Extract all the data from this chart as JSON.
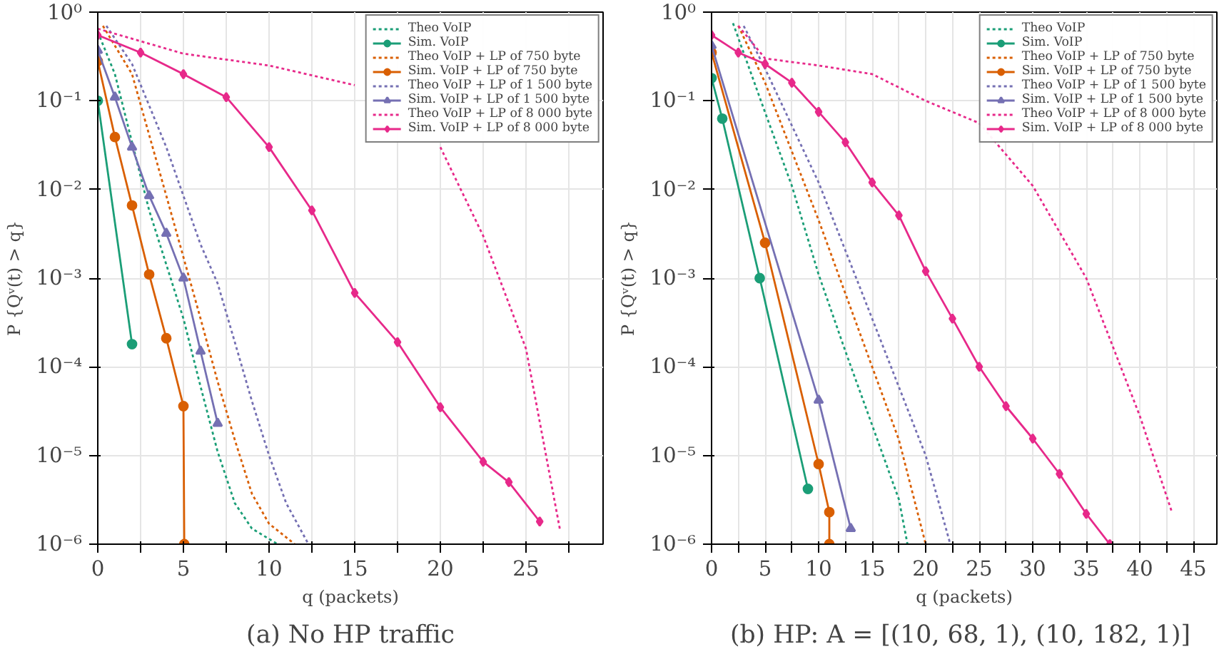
{
  "chart_data": [
    {
      "type": "line",
      "xlabel": "q (packets)",
      "ylabel": "P {Qᵛ(t) > q}",
      "annotations": [
        "(a) No HP traffic"
      ],
      "log": "y",
      "grid": true,
      "legend": "top right",
      "xlim": [
        0,
        29.5
      ],
      "xticks": [
        0,
        {
          "value": 2.5,
          "label": null
        },
        5,
        {
          "value": 7.5,
          "label": null
        },
        10,
        {
          "value": 12.5,
          "label": null
        },
        15,
        {
          "value": 17.5,
          "label": null
        },
        20,
        {
          "value": 22.5,
          "label": null
        },
        25,
        {
          "value": 27.5,
          "label": null
        }
      ],
      "ylim": [
        1e-06,
        1
      ],
      "yticks": [
        {
          "value": 1e-06,
          "label": "10⁻⁶"
        },
        {
          "value": 1e-05,
          "label": "10⁻⁵"
        },
        {
          "value": 0.0001,
          "label": "10⁻⁴"
        },
        {
          "value": 0.001,
          "label": "10⁻³"
        },
        {
          "value": 0.01,
          "label": "10⁻²"
        },
        {
          "value": 0.1,
          "label": "10⁻¹"
        },
        {
          "value": 1,
          "label": "10⁰"
        }
      ],
      "series": [
        {
          "name": "Theo VoIP",
          "color": "#1b9e77",
          "line_style": "dotted",
          "x": [
            0,
            1,
            3,
            5,
            6,
            7,
            8,
            9,
            10.5
          ],
          "values": [
            0.6,
            0.2,
            0.0058,
            0.00035,
            6e-05,
            1.1e-05,
            2.9e-06,
            1.5e-06,
            1e-06
          ]
        },
        {
          "name": "Sim. VoIP",
          "color": "#1b9e77",
          "line_style": "solid",
          "marker": "circle",
          "x": [
            0,
            2
          ],
          "values": [
            0.1,
            0.00018
          ]
        },
        {
          "name": "Theo VoIP + LP of 750 byte",
          "color": "#d95f02",
          "line_style": "dotted",
          "x": [
            0.3,
            2,
            4,
            6,
            7,
            8,
            9,
            10,
            11.5
          ],
          "values": [
            0.7,
            0.2,
            0.0085,
            0.00035,
            6.8e-05,
            1.5e-05,
            3.7e-06,
            1.7e-06,
            1e-06
          ]
        },
        {
          "name": "Sim. VoIP + LP of 750 byte",
          "color": "#d95f02",
          "line_style": "solid",
          "marker": "circle",
          "x": [
            0,
            1,
            2,
            3,
            4,
            5,
            5.05
          ],
          "values": [
            0.28,
            0.039,
            0.0066,
            0.0011,
            0.00021,
            3.6e-05,
            1e-06
          ]
        },
        {
          "name": "Theo VoIP + LP of 1 500 byte",
          "color": "#7570b3",
          "line_style": "dotted",
          "x": [
            0.5,
            2,
            4,
            6,
            7,
            8,
            9,
            10,
            11,
            12.3
          ],
          "values": [
            0.7,
            0.26,
            0.03,
            0.0024,
            0.00087,
            0.00019,
            4.1e-05,
            1e-05,
            2.9e-06,
            1e-06
          ]
        },
        {
          "name": "Sim. VoIP + LP of 1 500 byte",
          "color": "#7570b3",
          "line_style": "solid",
          "marker": "triangle",
          "x": [
            0,
            1,
            2,
            3,
            4,
            5,
            6,
            7
          ],
          "values": [
            0.37,
            0.11,
            0.03,
            0.0085,
            0.0032,
            0.001,
            0.00015,
            2.3e-05
          ]
        },
        {
          "name": "Theo VoIP + LP of 8 000 byte",
          "color": "#e7298a",
          "line_style": "dotted",
          "x": [
            0,
            5,
            10,
            15,
            17.5,
            20,
            22.5,
            25,
            27
          ],
          "values": [
            0.65,
            0.34,
            0.25,
            0.15,
            null,
            0.03,
            0.003,
            0.00016,
            1.4e-06
          ]
        },
        {
          "name": "Sim. VoIP + LP of 8 000 byte",
          "color": "#e7298a",
          "line_style": "solid",
          "marker": "diamond",
          "x": [
            0,
            2.5,
            5,
            7.5,
            10,
            12.5,
            15,
            17.5,
            20,
            22.5,
            24,
            25.8
          ],
          "values": [
            0.55,
            0.35,
            0.2,
            0.11,
            0.03,
            0.0058,
            0.00068,
            0.00019,
            3.5e-05,
            8.5e-06,
            5e-06,
            1.8e-06
          ]
        }
      ]
    },
    {
      "type": "line",
      "xlabel": "q (packets)",
      "ylabel": "P {Qᵛ(t) > q}",
      "annotations": [
        "(b) HP:  A = [(10, 68, 1), (10, 182, 1)]"
      ],
      "log": "y",
      "grid": true,
      "legend": "top right",
      "xlim": [
        0,
        47.2
      ],
      "xticks": [
        0,
        {
          "value": 2.5,
          "label": null
        },
        5,
        {
          "value": 7.5,
          "label": null
        },
        10,
        {
          "value": 12.5,
          "label": null
        },
        15,
        {
          "value": 17.5,
          "label": null
        },
        20,
        {
          "value": 22.5,
          "label": null
        },
        25,
        {
          "value": 27.5,
          "label": null
        },
        30,
        {
          "value": 32.5,
          "label": null
        },
        35,
        {
          "value": 37.5,
          "label": null
        },
        40,
        {
          "value": 42.5,
          "label": null
        },
        45
      ],
      "ylim": [
        1e-06,
        1
      ],
      "yticks": [
        {
          "value": 1e-06,
          "label": "10⁻⁶"
        },
        {
          "value": 1e-05,
          "label": "10⁻⁵"
        },
        {
          "value": 0.0001,
          "label": "10⁻⁴"
        },
        {
          "value": 0.001,
          "label": "10⁻³"
        },
        {
          "value": 0.01,
          "label": "10⁻²"
        },
        {
          "value": 0.1,
          "label": "10⁻¹"
        },
        {
          "value": 1,
          "label": "10⁰"
        }
      ],
      "series": [
        {
          "name": "Theo VoIP",
          "color": "#1b9e77",
          "line_style": "dotted",
          "x": [
            2,
            5,
            7.5,
            10,
            12.5,
            15,
            17.5,
            18.3
          ],
          "values": [
            0.75,
            0.074,
            0.011,
            0.0011,
            0.00015,
            2.2e-05,
            3.2e-06,
            1e-06
          ]
        },
        {
          "name": "Sim. VoIP",
          "color": "#1b9e77",
          "line_style": "solid",
          "marker": "circle",
          "x": [
            0,
            1,
            4.5,
            9
          ],
          "values": [
            0.18,
            0.063,
            0.001,
            4.2e-06
          ]
        },
        {
          "name": "Theo VoIP + LP of 750 byte",
          "color": "#d95f02",
          "line_style": "dotted",
          "x": [
            2.5,
            5,
            10,
            15,
            17.5,
            20
          ],
          "values": [
            0.7,
            0.16,
            0.0045,
            0.0001,
            1.5e-05,
            1e-06
          ]
        },
        {
          "name": "Sim. VoIP + LP of 750 byte",
          "color": "#d95f02",
          "line_style": "solid",
          "marker": "circle",
          "x": [
            0,
            5,
            10,
            11,
            11
          ],
          "values": [
            0.35,
            0.0025,
            8e-06,
            2.3e-06,
            1e-06
          ]
        },
        {
          "name": "Theo VoIP + LP of 1 500 byte",
          "color": "#7570b3",
          "line_style": "dotted",
          "x": [
            3,
            5,
            10,
            15,
            20,
            22.3
          ],
          "values": [
            0.7,
            0.23,
            0.012,
            0.00035,
            1e-05,
            1e-06
          ]
        },
        {
          "name": "Sim. VoIP + LP of 1 500 byte",
          "color": "#7570b3",
          "line_style": "solid",
          "marker": "triangle",
          "x": [
            0,
            10,
            13
          ],
          "values": [
            0.42,
            4.2e-05,
            1.5e-06
          ]
        },
        {
          "name": "Theo VoIP + LP of 8 000 byte",
          "color": "#e7298a",
          "line_style": "dotted",
          "x": [
            2.5,
            5,
            10,
            15,
            20,
            25,
            30,
            35,
            40,
            43
          ],
          "values": [
            0.7,
            0.3,
            0.25,
            0.2,
            0.1,
            0.056,
            0.011,
            0.001,
            2.8e-05,
            2.3e-06
          ]
        },
        {
          "name": "Sim. VoIP + LP of 8 000 byte",
          "color": "#e7298a",
          "line_style": "solid",
          "marker": "diamond",
          "x": [
            0,
            2.5,
            5,
            7.5,
            10,
            12.5,
            15,
            17.5,
            20,
            22.5,
            25,
            27.5,
            30,
            32.5,
            35,
            37.2
          ],
          "values": [
            0.55,
            0.35,
            0.26,
            0.16,
            0.075,
            0.034,
            0.012,
            0.0051,
            0.0012,
            0.00035,
            0.0001,
            3.6e-05,
            1.55e-05,
            6.2e-06,
            2.2e-06,
            1e-06
          ]
        }
      ]
    }
  ]
}
